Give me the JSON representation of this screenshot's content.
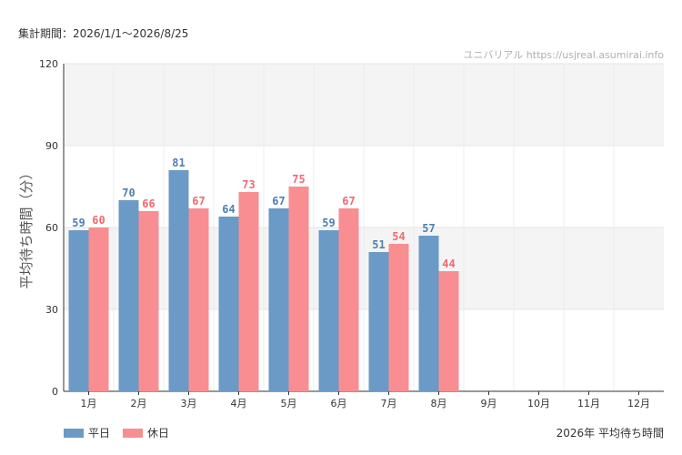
{
  "header": {
    "period": "集計期間：2026/1/1〜2026/8/25",
    "watermark": "ユニバリアル  https://usjreal.asumirai.info"
  },
  "footer": {
    "caption": "2026年 平均待ち時間"
  },
  "colors": {
    "weekday": "#6b9ac6",
    "holiday": "#f88e91",
    "weekday_label": "#4f7fb0",
    "holiday_label": "#f06a70",
    "band": "#f4f4f4"
  },
  "chart_data": {
    "type": "bar",
    "ylabel": "平均待ち時間（分）",
    "ylim": [
      0,
      120
    ],
    "yticks": [
      "0",
      "30",
      "60",
      "90",
      "120"
    ],
    "categories": [
      "1月",
      "2月",
      "3月",
      "4月",
      "5月",
      "6月",
      "7月",
      "8月",
      "9月",
      "10月",
      "11月",
      "12月"
    ],
    "series": [
      {
        "name": "平日",
        "values": [
          59,
          70,
          81,
          64,
          67,
          59,
          51,
          57,
          null,
          null,
          null,
          null
        ]
      },
      {
        "name": "休日",
        "values": [
          60,
          66,
          67,
          73,
          75,
          67,
          54,
          44,
          null,
          null,
          null,
          null
        ]
      }
    ],
    "legend": "bottom-left",
    "grid": true
  }
}
